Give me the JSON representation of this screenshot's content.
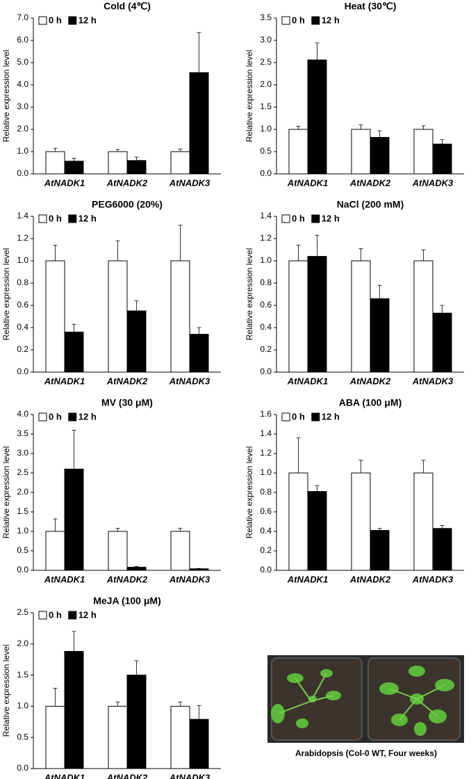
{
  "chart_data": [
    {
      "type": "bar",
      "title": "Cold (4℃)",
      "y_label": "Relative expression level",
      "categories": [
        "AtNADK1",
        "AtNADK2",
        "AtNADK3"
      ],
      "series": [
        {
          "name": "0 h",
          "color": "#ffffff",
          "values": [
            1,
            1,
            1
          ],
          "errors": [
            0.15,
            0.1,
            0.12
          ]
        },
        {
          "name": "12 h",
          "color": "#000000",
          "values": [
            0.57,
            0.6,
            4.55
          ],
          "errors": [
            0.13,
            0.15,
            1.8
          ]
        }
      ],
      "ylim": [
        0,
        7
      ],
      "yticks": [
        {
          "value": 0,
          "label": "0.0"
        },
        {
          "value": 1,
          "label": "1.0"
        },
        {
          "value": 2,
          "label": "2.0"
        },
        {
          "value": 3,
          "label": "3.0"
        },
        {
          "value": 4,
          "label": "4.0"
        },
        {
          "value": 5,
          "label": "5.0"
        },
        {
          "value": 6,
          "label": "6.0"
        },
        {
          "value": 7,
          "label": "7.0"
        }
      ]
    },
    {
      "type": "bar",
      "title": "Heat (30℃)",
      "y_label": "Relative expression level",
      "categories": [
        "AtNADK1",
        "AtNADK2",
        "AtNADK3"
      ],
      "series": [
        {
          "name": "0 h",
          "color": "#ffffff",
          "values": [
            1,
            1,
            1
          ],
          "errors": [
            0.07,
            0.1,
            0.08
          ]
        },
        {
          "name": "12 h",
          "color": "#000000",
          "values": [
            2.56,
            0.82,
            0.67
          ],
          "errors": [
            0.38,
            0.15,
            0.1
          ]
        }
      ],
      "ylim": [
        0,
        3.5
      ],
      "yticks": [
        {
          "value": 0,
          "label": "0.0"
        },
        0.5,
        {
          "value": 1,
          "label": "1.0"
        },
        1.5,
        {
          "value": 2,
          "label": "2.0"
        },
        2.5,
        {
          "value": 3,
          "label": "3.0"
        },
        3.5
      ]
    },
    {
      "type": "bar",
      "title": "PEG6000 (20%)",
      "y_label": "Relative expression level",
      "categories": [
        "AtNADK1",
        "AtNADK2",
        "AtNADK3"
      ],
      "series": [
        {
          "name": "0 h",
          "color": "#ffffff",
          "values": [
            1,
            1,
            1
          ],
          "errors": [
            0.14,
            0.18,
            0.32
          ]
        },
        {
          "name": "12 h",
          "color": "#000000",
          "values": [
            0.36,
            0.55,
            0.34
          ],
          "errors": [
            0.07,
            0.09,
            0.06
          ]
        }
      ],
      "ylim": [
        0,
        1.4
      ],
      "yticks": [
        {
          "value": 0,
          "label": "0.0"
        },
        0.2,
        0.4,
        0.6,
        0.8,
        {
          "value": 1,
          "label": "1.0"
        },
        1.2,
        1.4
      ]
    },
    {
      "type": "bar",
      "title": "NaCl (200 mM)",
      "y_label": "Relative expression level",
      "categories": [
        "AtNADK1",
        "AtNADK2",
        "AtNADK3"
      ],
      "series": [
        {
          "name": "0 h",
          "color": "#ffffff",
          "values": [
            1,
            1,
            1
          ],
          "errors": [
            0.14,
            0.11,
            0.1
          ]
        },
        {
          "name": "12 h",
          "color": "#000000",
          "values": [
            1.04,
            0.66,
            0.53
          ],
          "errors": [
            0.19,
            0.12,
            0.07
          ]
        }
      ],
      "ylim": [
        0,
        1.4
      ],
      "yticks": [
        {
          "value": 0,
          "label": "0.0"
        },
        0.2,
        0.4,
        0.6,
        0.8,
        {
          "value": 1,
          "label": "1.0"
        },
        1.2,
        1.4
      ]
    },
    {
      "type": "bar",
      "title": "MV (30 μM)",
      "y_label": "Relative expression level",
      "categories": [
        "AtNADK1",
        "AtNADK2",
        "AtNADK3"
      ],
      "series": [
        {
          "name": "0 h",
          "color": "#ffffff",
          "values": [
            1,
            1,
            1
          ],
          "errors": [
            0.32,
            0.08,
            0.08
          ]
        },
        {
          "name": "12 h",
          "color": "#000000",
          "values": [
            2.6,
            0.08,
            0.04
          ],
          "errors": [
            1.0,
            0.02,
            0.01
          ]
        }
      ],
      "ylim": [
        0,
        4
      ],
      "yticks": [
        {
          "value": 0,
          "label": "0.0"
        },
        0.5,
        {
          "value": 1,
          "label": "1.0"
        },
        1.5,
        {
          "value": 2,
          "label": "2.0"
        },
        2.5,
        {
          "value": 3,
          "label": "3.0"
        },
        3.5,
        {
          "value": 4,
          "label": "4.0"
        }
      ]
    },
    {
      "type": "bar",
      "title": "ABA (100 μM)",
      "y_label": "Relative expression level",
      "categories": [
        "AtNADK1",
        "AtNADK2",
        "AtNADK3"
      ],
      "series": [
        {
          "name": "0 h",
          "color": "#ffffff",
          "values": [
            1,
            1,
            1
          ],
          "errors": [
            0.36,
            0.13,
            0.13
          ]
        },
        {
          "name": "12 h",
          "color": "#000000",
          "values": [
            0.81,
            0.41,
            0.43
          ],
          "errors": [
            0.06,
            0.02,
            0.03
          ]
        }
      ],
      "ylim": [
        0,
        1.6
      ],
      "yticks": [
        {
          "value": 0,
          "label": "0.0"
        },
        0.2,
        0.4,
        0.6,
        0.8,
        {
          "value": 1,
          "label": "1.0"
        },
        1.2,
        1.4,
        1.6
      ]
    },
    {
      "type": "bar",
      "title": "MeJA (100 μM)",
      "y_label": "Relative expression level",
      "categories": [
        "AtNADK1",
        "AtNADK2",
        "AtNADK3"
      ],
      "series": [
        {
          "name": "0 h",
          "color": "#ffffff",
          "values": [
            1,
            1,
            1
          ],
          "errors": [
            0.29,
            0.07,
            0.07
          ]
        },
        {
          "name": "12 h",
          "color": "#000000",
          "values": [
            1.88,
            1.5,
            0.79
          ],
          "errors": [
            0.32,
            0.23,
            0.22
          ]
        }
      ],
      "ylim": [
        0,
        2.5
      ],
      "yticks": [
        {
          "value": 0,
          "label": "0.0"
        },
        0.5,
        {
          "value": 1,
          "label": "1.0"
        },
        1.5,
        {
          "value": 2,
          "label": "2.0"
        },
        2.5
      ]
    }
  ],
  "photo": {
    "caption": "Arabidopsis (Col-0 WT, Four weeks)"
  }
}
